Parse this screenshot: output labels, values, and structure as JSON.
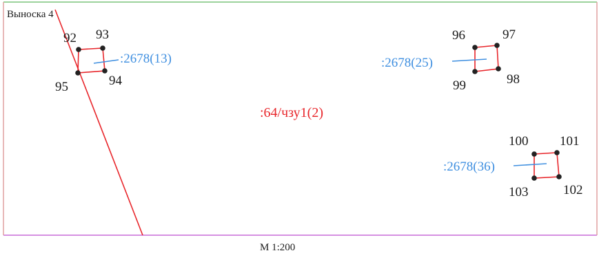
{
  "title": "Выноска 4",
  "scale": "М 1:200",
  "zone_label": ":64/чзу1(2)",
  "colors": {
    "boundary": "#e8262b",
    "cadastral": "#3f8fe0",
    "points": "#222222",
    "frame_top": "#7cc47c",
    "frame_bottom": "#c86bd8",
    "frame_side": "#e0a0a0"
  },
  "parcels": [
    {
      "cadastral_label": ":2678(13)",
      "points": [
        "92",
        "93",
        "94",
        "95"
      ]
    },
    {
      "cadastral_label": ":2678(25)",
      "points": [
        "96",
        "97",
        "98",
        "99"
      ]
    },
    {
      "cadastral_label": ":2678(36)",
      "points": [
        "100",
        "101",
        "102",
        "103"
      ]
    }
  ]
}
